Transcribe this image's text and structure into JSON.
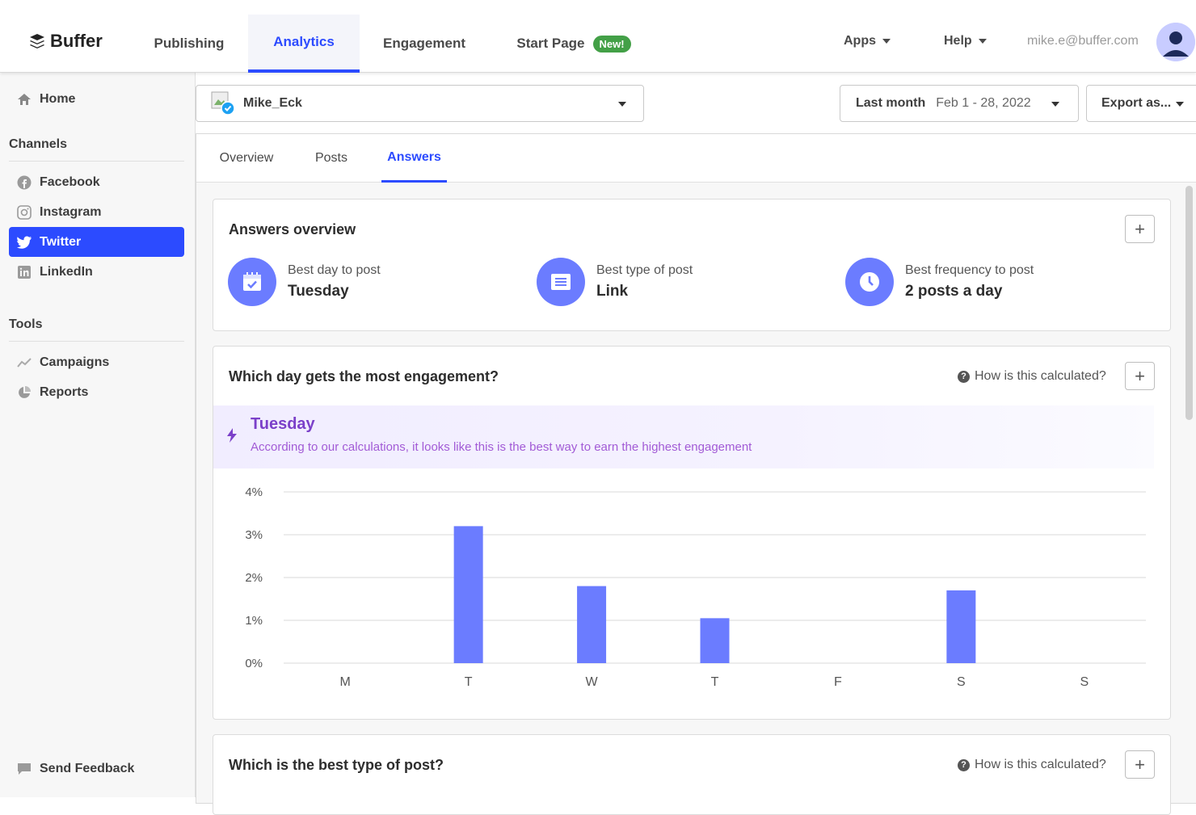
{
  "brand": {
    "name": "Buffer",
    "accent": "#2c4bff",
    "chart_color": "#6b7cff"
  },
  "topnav": {
    "tabs": [
      {
        "label": "Publishing"
      },
      {
        "label": "Analytics",
        "active": true
      },
      {
        "label": "Engagement"
      },
      {
        "label": "Start Page",
        "badge": "New!"
      }
    ],
    "apps": "Apps",
    "help": "Help",
    "email": "mike.e@buffer.com"
  },
  "sidebar": {
    "home": "Home",
    "channels_heading": "Channels",
    "channels": [
      {
        "label": "Facebook",
        "icon": "facebook-icon"
      },
      {
        "label": "Instagram",
        "icon": "instagram-icon"
      },
      {
        "label": "Twitter",
        "icon": "twitter-icon",
        "active": true
      },
      {
        "label": "LinkedIn",
        "icon": "linkedin-icon"
      }
    ],
    "tools_heading": "Tools",
    "tools": [
      {
        "label": "Campaigns",
        "icon": "trend-icon"
      },
      {
        "label": "Reports",
        "icon": "pie-icon"
      }
    ],
    "feedback": "Send Feedback"
  },
  "controls": {
    "account": "Mike_Eck",
    "date_range_label": "Last month",
    "date_range_value": "Feb 1 - 28, 2022",
    "export": "Export as..."
  },
  "subtabs": [
    {
      "label": "Overview"
    },
    {
      "label": "Posts"
    },
    {
      "label": "Answers",
      "active": true
    }
  ],
  "overview": {
    "title": "Answers overview",
    "stats": [
      {
        "label": "Best day to post",
        "value": "Tuesday",
        "icon": "calendar-icon"
      },
      {
        "label": "Best type of post",
        "value": "Link",
        "icon": "document-icon"
      },
      {
        "label": "Best frequency to post",
        "value": "2 posts a day",
        "icon": "clock-icon"
      }
    ]
  },
  "engagement_card": {
    "title": "Which day gets the most engagement?",
    "how": "How is this calculated?",
    "highlight_title": "Tuesday",
    "highlight_sub": "According to our calculations, it looks like this is the best way to earn the highest engagement"
  },
  "type_card": {
    "title": "Which is the best type of post?",
    "how": "How is this calculated?"
  },
  "chart_data": {
    "type": "bar",
    "categories": [
      "M",
      "T",
      "W",
      "T",
      "F",
      "S",
      "S"
    ],
    "values": [
      0,
      3.2,
      1.8,
      1.05,
      0,
      1.7,
      0
    ],
    "y_ticks": [
      "4%",
      "3%",
      "2%",
      "1%",
      "0%"
    ],
    "ylim": [
      0,
      4
    ],
    "grid": true,
    "color": "#6b7cff"
  }
}
